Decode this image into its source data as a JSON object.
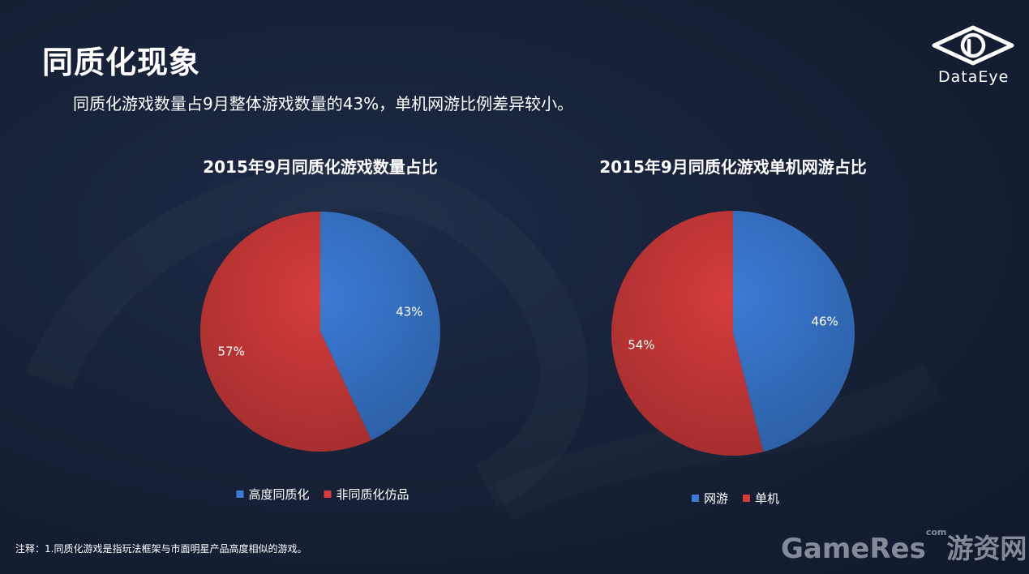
{
  "header": {
    "title": "同质化现象",
    "subtitle": "同质化游戏数量占9月整体游戏数量的43%，单机网游比例差异较小。"
  },
  "logo": {
    "icon": "dataeye-eye-icon",
    "text": "DataEye"
  },
  "colors": {
    "blue": "#3a7bd5",
    "red": "#d63c3c",
    "background": "#172238"
  },
  "chart_data": [
    {
      "type": "pie",
      "title": "2015年9月同质化游戏数量占比",
      "categories": [
        "高度同质化",
        "非同质化仿品"
      ],
      "values": [
        43,
        57
      ],
      "labels": [
        "43%",
        "57%"
      ],
      "colors": [
        "#3a7bd5",
        "#d63c3c"
      ],
      "legend_position": "bottom"
    },
    {
      "type": "pie",
      "title": "2015年9月同质化游戏单机网游占比",
      "categories": [
        "网游",
        "单机"
      ],
      "values": [
        46,
        54
      ],
      "labels": [
        "46%",
        "54%"
      ],
      "colors": [
        "#3a7bd5",
        "#d63c3c"
      ],
      "legend_position": "bottom"
    }
  ],
  "footnote": "注释：1.同质化游戏是指玩法框架与市面明星产品高度相似的游戏。",
  "watermark": {
    "latin": "GameRes",
    "small": "com",
    "cn": "游资网"
  }
}
